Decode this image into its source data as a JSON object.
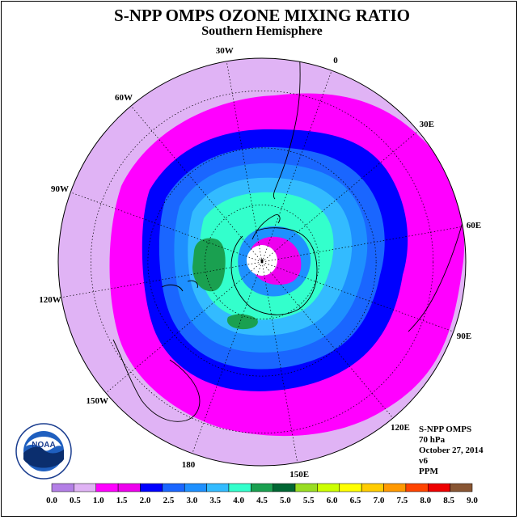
{
  "title": "S-NPP OMPS OZONE MIXING RATIO",
  "subtitle": "Southern Hemisphere",
  "longitude_labels": [
    {
      "text": "90W",
      "lon": -90
    },
    {
      "text": "60W",
      "lon": -60
    },
    {
      "text": "30W",
      "lon": -30
    },
    {
      "text": "0",
      "lon": 0
    },
    {
      "text": "30E",
      "lon": 30
    },
    {
      "text": "60E",
      "lon": 60
    },
    {
      "text": "90E",
      "lon": 90
    },
    {
      "text": "120E",
      "lon": 120
    },
    {
      "text": "150E",
      "lon": 150
    },
    {
      "text": "180",
      "lon": 180
    },
    {
      "text": "150W",
      "lon": -150
    },
    {
      "text": "120W",
      "lon": -120
    }
  ],
  "info": {
    "instrument": "S-NPP OMPS",
    "level": "70 hPa",
    "date": "October 27, 2014",
    "version": "v6",
    "units": "PPM"
  },
  "logo": {
    "text": "NOAA",
    "ring_text": "NATIONAL OCEANIC AND ATMOSPHERIC ADMINISTRATION · U.S. DEPARTMENT OF COMMERCE"
  },
  "colorbar": {
    "labels": [
      "0.0",
      "0.5",
      "1.0",
      "1.5",
      "2.0",
      "2.5",
      "3.0",
      "3.5",
      "4.0",
      "4.5",
      "5.0",
      "5.5",
      "6.0",
      "6.5",
      "7.0",
      "7.5",
      "8.0",
      "8.5",
      "9.0"
    ],
    "colors": [
      "#b37fe6",
      "#e0b3f5",
      "#ff00ff",
      "#ee00ee",
      "#0000ff",
      "#1a66ff",
      "#1e90ff",
      "#33bbff",
      "#33ffcc",
      "#1aa050",
      "#006633",
      "#99dd22",
      "#ccff00",
      "#ffff00",
      "#ffcc00",
      "#ff9900",
      "#ff4400",
      "#ee0000",
      "#885533"
    ]
  },
  "chart_data": {
    "type": "heatmap",
    "projection": "south polar stereographic",
    "variable": "ozone mixing ratio",
    "units": "PPM",
    "range": [
      0.0,
      9.0
    ],
    "pattern": [
      {
        "band": "outer",
        "value_range": [
          0.5,
          1.0
        ]
      },
      {
        "band": "collar",
        "value_range": [
          1.0,
          1.5
        ]
      },
      {
        "band": "ring",
        "value_range": [
          2.0,
          2.5
        ]
      },
      {
        "band": "inner",
        "value_range": [
          3.0,
          4.0
        ]
      },
      {
        "band": "polar",
        "value_range": [
          1.0,
          2.0
        ]
      },
      {
        "band": "pole",
        "value_range": [
          0.0,
          0.0
        ]
      }
    ]
  }
}
